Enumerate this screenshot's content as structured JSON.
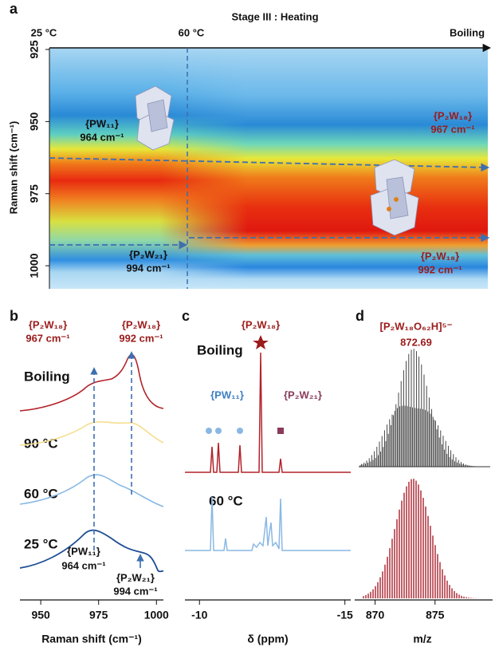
{
  "panel_a": {
    "label": "a",
    "title": "Stage III : Heating",
    "top_labels": [
      "25 °C",
      "60 °C",
      "Boiling"
    ],
    "y_axis_label": "Raman shift (cm⁻¹)",
    "ylim": [
      925,
      1008
    ],
    "yticks": [
      925,
      950,
      975,
      1000
    ],
    "annotations": [
      {
        "name": "{PW₁₁}",
        "shift": "964 cm⁻¹"
      },
      {
        "name": "{P₂W₂₁}",
        "shift": "994 cm⁻¹"
      },
      {
        "name": "{P₂W₁₈}",
        "shift": "967 cm⁻¹"
      },
      {
        "name": "{P₂W₁₈}",
        "shift": "992 cm⁻¹"
      }
    ]
  },
  "panel_b": {
    "label": "b",
    "annotations_top": [
      {
        "name": "{P₂W₁₈}",
        "shift": "967 cm⁻¹"
      },
      {
        "name": "{P₂W₁₈}",
        "shift": "992 cm⁻¹"
      }
    ],
    "traces": [
      "Boiling",
      "90 °C",
      "60 °C",
      "25 °C"
    ],
    "annotations_bottom": [
      {
        "name": "{PW₁₁}",
        "shift": "964 cm⁻¹"
      },
      {
        "name": "{P₂W₂₁}",
        "shift": "994 cm⁻¹"
      }
    ],
    "x_axis_label": "Raman shift (cm⁻¹)",
    "xlim": [
      941,
      1003
    ],
    "xticks": [
      950,
      975,
      1000
    ]
  },
  "panel_c": {
    "label": "c",
    "peak_label": "{P₂W₁₈}",
    "traces": [
      "Boiling",
      "60 °C"
    ],
    "species": [
      "{PW₁₁}",
      "{P₂W₂₁}"
    ],
    "x_axis_label": "δ (ppm)",
    "xlim": [
      -9.5,
      -15.2
    ],
    "xticks": [
      -10,
      -15
    ]
  },
  "panel_d": {
    "label": "d",
    "formula": "[P₂W₁₈O₆₂H]⁵⁻",
    "peak": "872.69",
    "x_axis_label": "m/z",
    "xlim": [
      868.3,
      879.8
    ],
    "xticks": [
      870,
      875
    ]
  }
}
